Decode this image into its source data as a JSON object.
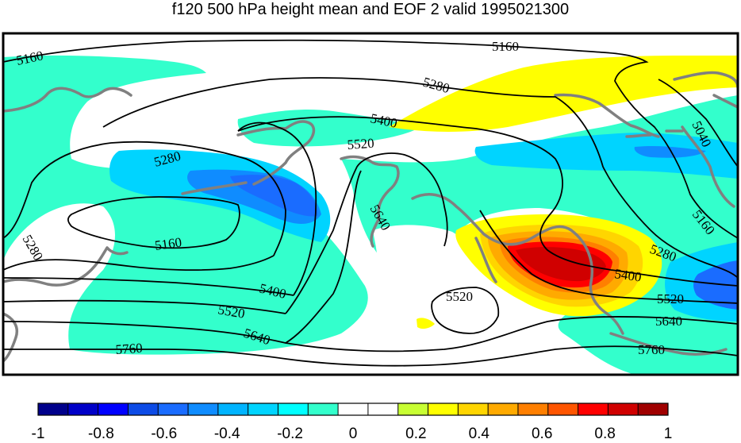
{
  "title": "f120 500 hPa height mean and EOF 2 valid 1995021300",
  "colors": {
    "land": "#808080",
    "contour": "#000000",
    "levels": {
      "n10": "#00008b",
      "n09": "#0000c8",
      "n08": "#0000ff",
      "n07": "#0d4be6",
      "n06": "#1a6cff",
      "n05": "#0f8cff",
      "n04": "#00b4ff",
      "n03": "#00d4ff",
      "n02": "#00ffff",
      "n01": "#33ffcc",
      "p00": "#ffffff",
      "p01": "#c8ff33",
      "p02": "#ffff00",
      "p03": "#ffd500",
      "p04": "#ffaa00",
      "p05": "#ff7f00",
      "p06": "#ff5500",
      "p07": "#ff0000",
      "p08": "#d00000",
      "p09": "#a00000"
    }
  },
  "contour_labels": [
    {
      "name": "contour-label-5160-a",
      "text": "5160"
    },
    {
      "name": "contour-label-5160-b",
      "text": "5160"
    },
    {
      "name": "contour-label-5160-c",
      "text": "5160"
    },
    {
      "name": "contour-label-5160-d",
      "text": "5160"
    },
    {
      "name": "contour-label-5280-a",
      "text": "5280"
    },
    {
      "name": "contour-label-5280-b",
      "text": "5280"
    },
    {
      "name": "contour-label-5280-c",
      "text": "5280"
    },
    {
      "name": "contour-label-5280-d",
      "text": "5280"
    },
    {
      "name": "contour-label-5400-a",
      "text": "5400"
    },
    {
      "name": "contour-label-5400-b",
      "text": "5400"
    },
    {
      "name": "contour-label-5400-c",
      "text": "5400"
    },
    {
      "name": "contour-label-5520-a",
      "text": "5520"
    },
    {
      "name": "contour-label-5520-b",
      "text": "5520"
    },
    {
      "name": "contour-label-5520-c",
      "text": "5520"
    },
    {
      "name": "contour-label-5520-d",
      "text": "5520"
    },
    {
      "name": "contour-label-5640-a",
      "text": "5640"
    },
    {
      "name": "contour-label-5640-b",
      "text": "5640"
    },
    {
      "name": "contour-label-5640-c",
      "text": "5640"
    },
    {
      "name": "contour-label-5760-a",
      "text": "5760"
    },
    {
      "name": "contour-label-5760-b",
      "text": "5760"
    },
    {
      "name": "contour-label-5040",
      "text": "5040"
    }
  ],
  "colorbar": {
    "colors": [
      "#00008b",
      "#0000c8",
      "#0000ff",
      "#0d4be6",
      "#1a6cff",
      "#0f8cff",
      "#00b4ff",
      "#00d4ff",
      "#00ffff",
      "#33ffcc",
      "#ffffff",
      "#ffffff",
      "#c8ff33",
      "#ffff00",
      "#ffd500",
      "#ffaa00",
      "#ff7f00",
      "#ff5500",
      "#ff0000",
      "#d00000",
      "#a00000"
    ],
    "labels": [
      "-1",
      "-0.8",
      "-0.6",
      "-0.4",
      "-0.2",
      "0",
      "0.2",
      "0.4",
      "0.6",
      "0.8",
      "1"
    ]
  }
}
